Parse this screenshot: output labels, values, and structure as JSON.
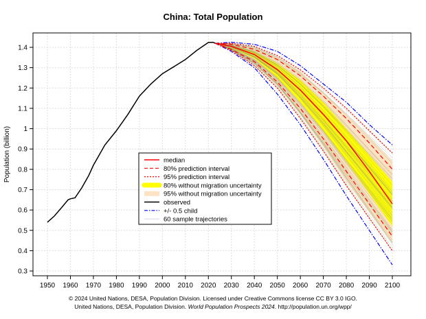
{
  "chart_data": {
    "type": "line",
    "title": "China: Total Population",
    "xlabel": "",
    "ylabel": "Population (billion)",
    "xlim": [
      1945,
      2105
    ],
    "ylim": [
      0.28,
      1.46
    ],
    "xticks": [
      1950,
      1960,
      1970,
      1980,
      1990,
      2000,
      2010,
      2020,
      2030,
      2040,
      2050,
      2060,
      2070,
      2080,
      2090,
      2100
    ],
    "yticks": [
      0.3,
      0.4,
      0.5,
      0.6,
      0.7,
      0.8,
      0.9,
      1,
      1.1,
      1.2,
      1.3,
      1.4
    ],
    "grid": true,
    "legend_placement": "center-left",
    "legend": [
      "median",
      "80% prediction interval",
      "95% prediction interval",
      "80% without migration uncertainty",
      "95% without migration uncertainty",
      "observed",
      "+/- 0.5 child",
      "60 sample trajectories"
    ],
    "observed": {
      "x": [
        1950,
        1953,
        1956,
        1959,
        1960,
        1962,
        1965,
        1968,
        1970,
        1975,
        1980,
        1985,
        1990,
        1995,
        2000,
        2005,
        2010,
        2015,
        2020,
        2022,
        2023
      ],
      "y": [
        0.54,
        0.57,
        0.61,
        0.65,
        0.655,
        0.66,
        0.71,
        0.77,
        0.82,
        0.92,
        0.99,
        1.07,
        1.16,
        1.22,
        1.27,
        1.305,
        1.34,
        1.385,
        1.424,
        1.425,
        1.42
      ]
    },
    "projection_years": [
      2023,
      2030,
      2040,
      2050,
      2060,
      2070,
      2080,
      2090,
      2100
    ],
    "median": [
      1.42,
      1.405,
      1.365,
      1.29,
      1.19,
      1.07,
      0.94,
      0.79,
      0.63
    ],
    "pi80_upper": [
      1.42,
      1.415,
      1.39,
      1.34,
      1.26,
      1.16,
      1.05,
      0.93,
      0.8
    ],
    "pi80_lower": [
      1.42,
      1.39,
      1.33,
      1.23,
      1.1,
      0.95,
      0.79,
      0.63,
      0.47
    ],
    "pi95_upper": [
      1.42,
      1.42,
      1.405,
      1.36,
      1.29,
      1.2,
      1.1,
      0.99,
      0.88
    ],
    "pi95_lower": [
      1.42,
      1.385,
      1.31,
      1.2,
      1.05,
      0.89,
      0.72,
      0.56,
      0.4
    ],
    "half_child_upper": [
      1.42,
      1.425,
      1.415,
      1.38,
      1.31,
      1.22,
      1.13,
      1.02,
      0.92
    ],
    "half_child_lower": [
      1.42,
      1.38,
      1.3,
      1.17,
      1.02,
      0.85,
      0.67,
      0.5,
      0.33
    ],
    "nomig80_upper": [
      1.42,
      1.41,
      1.38,
      1.32,
      1.24,
      1.13,
      1.0,
      0.87,
      0.74
    ],
    "nomig80_lower": [
      1.42,
      1.395,
      1.345,
      1.25,
      1.13,
      0.99,
      0.84,
      0.68,
      0.52
    ],
    "nomig95_upper": [
      1.42,
      1.415,
      1.4,
      1.35,
      1.28,
      1.18,
      1.07,
      0.96,
      0.84
    ],
    "nomig95_lower": [
      1.42,
      1.39,
      1.32,
      1.21,
      1.07,
      0.91,
      0.74,
      0.59,
      0.44
    ],
    "sample_trajectory_count": 60,
    "colors": {
      "median": "#ff0000",
      "pi": "#ff0000",
      "nomig80": "#ffff00",
      "nomig95": "#fde3c3",
      "observed": "#000000",
      "half_child": "#0000ff",
      "samples": "#a0a070"
    }
  },
  "footer": {
    "line1": "© 2024 United Nations, DESA, Population Division. Licensed under Creative Commons license CC BY 3.0 IGO.",
    "line2_pre": "United Nations, DESA, Population Division. ",
    "line2_italic": "World Population Prospects 2024",
    "line2_post": ". http://population.un.org/wpp/"
  }
}
